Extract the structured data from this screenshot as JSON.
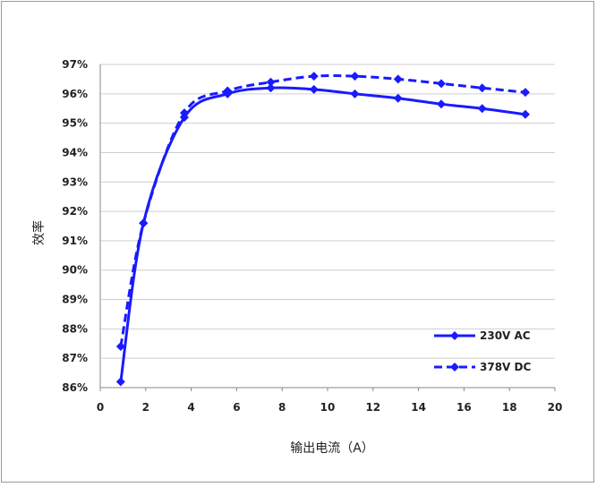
{
  "chart_data": {
    "type": "line",
    "title": "",
    "xlabel": "输出电流（A）",
    "ylabel": "效率",
    "xlim": [
      0,
      20
    ],
    "ylim": [
      86,
      97
    ],
    "x_ticks": [
      "0",
      "2",
      "4",
      "6",
      "8",
      "10",
      "12",
      "14",
      "16",
      "18",
      "20"
    ],
    "y_ticks": [
      "86%",
      "87%",
      "88%",
      "89%",
      "90%",
      "91%",
      "92%",
      "93%",
      "94%",
      "95%",
      "96%",
      "97%"
    ],
    "grid": true,
    "legend_position": "bottom-right",
    "colors": {
      "series": "#1a1aff",
      "grid": "#cfcfcf",
      "axis": "#888888"
    },
    "series": [
      {
        "name": "230V AC",
        "style": "solid",
        "x": [
          0.9,
          1.9,
          3.7,
          5.6,
          7.5,
          9.4,
          11.2,
          13.1,
          15.0,
          16.8,
          18.7
        ],
        "y": [
          86.2,
          91.6,
          95.2,
          96.0,
          96.2,
          96.15,
          96.0,
          95.85,
          95.65,
          95.5,
          95.3
        ]
      },
      {
        "name": "378V DC",
        "style": "dashed",
        "x": [
          0.9,
          1.9,
          3.7,
          5.6,
          7.5,
          9.4,
          11.2,
          13.1,
          15.0,
          16.8,
          18.7
        ],
        "y": [
          87.4,
          91.6,
          95.35,
          96.1,
          96.4,
          96.6,
          96.6,
          96.5,
          96.35,
          96.2,
          96.05
        ]
      }
    ]
  }
}
